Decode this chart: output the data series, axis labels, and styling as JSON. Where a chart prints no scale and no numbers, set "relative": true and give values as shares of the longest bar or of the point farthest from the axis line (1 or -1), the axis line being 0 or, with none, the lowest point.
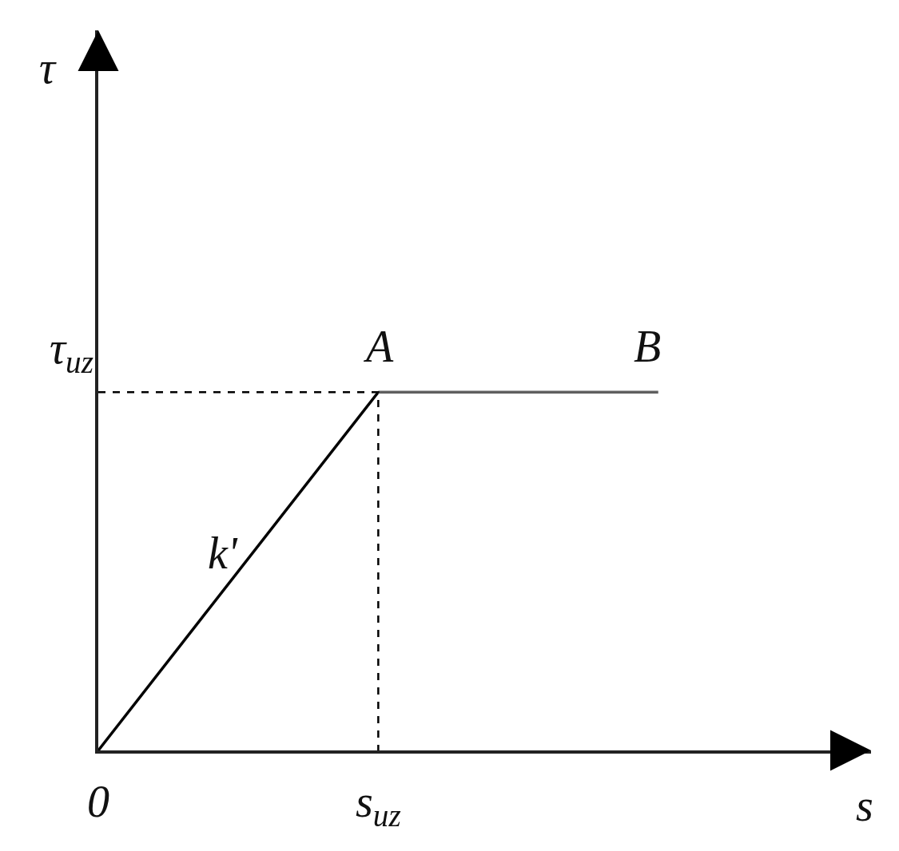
{
  "chart_data": {
    "type": "line",
    "relative": true,
    "line_style": "solid",
    "xlabel": "s",
    "categories": [
      "0",
      "s$_{uz}$",
      null
    ],
    "series": [
      {
        "color": "#000000",
        "values": [
          0,
          1,
          null
        ]
      },
      {
        "color": "#5f5f5f",
        "values": [
          null,
          1,
          1
        ]
      },
      {
        "color": "#000000",
        "x": [
          "0",
          "s$_{uz}$",
          "s$_{uz}$"
        ],
        "values": [
          1,
          1,
          0
        ],
        "line_style": "dashed"
      }
    ],
    "annotations": [
      "τ",
      {
        "text": "τ$_{uz}$",
        "x": "0",
        "y": 1
      },
      {
        "text": "A",
        "x": "s$_{uz}$",
        "y": 1
      },
      {
        "text": "B",
        "y": 1
      },
      "k'"
    ]
  }
}
